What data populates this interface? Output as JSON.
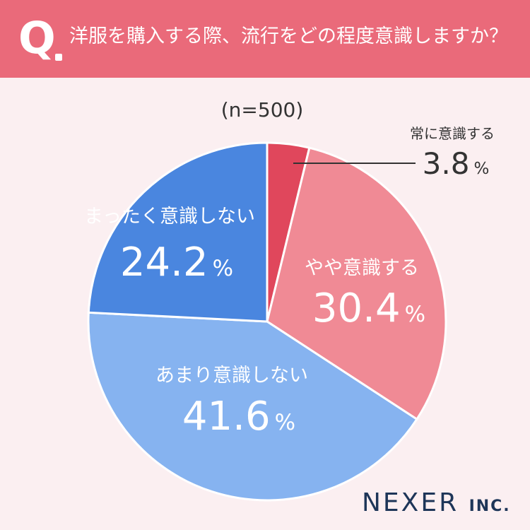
{
  "header": {
    "q_mark": "Q",
    "question": "洋服を購入する際、流行をどの程度意識しますか？"
  },
  "sample": "(n=500)",
  "chart_data": {
    "type": "pie",
    "start_angle_deg": 0,
    "direction": "clockwise",
    "slices": [
      {
        "label": "常に意識する",
        "value": 3.8,
        "display": "3.8",
        "color": "#e0475c"
      },
      {
        "label": "やや意識する",
        "value": 30.4,
        "display": "30.4",
        "color": "#f08a95"
      },
      {
        "label": "あまり意識しない",
        "value": 41.6,
        "display": "41.6",
        "color": "#86b3f0"
      },
      {
        "label": "まったく意識しない",
        "value": 24.2,
        "display": "24.2",
        "color": "#4a86df"
      }
    ],
    "percent_sign": "%"
  },
  "logo": {
    "main": "NEXER",
    "suffix": "INC."
  }
}
